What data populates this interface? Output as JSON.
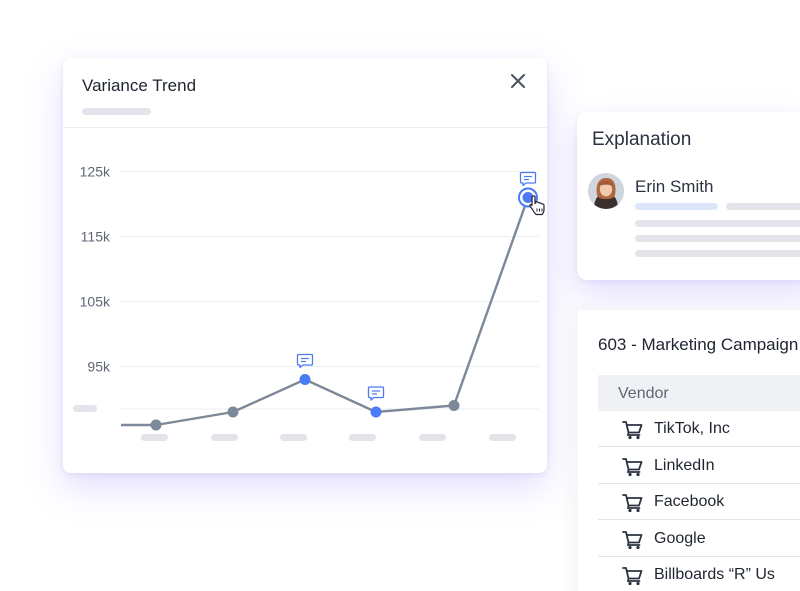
{
  "chart_card": {
    "title": "Variance Trend"
  },
  "chart_data": {
    "type": "line",
    "title": "Variance Trend",
    "y_ticks": [
      "125k",
      "115k",
      "105k",
      "95k"
    ],
    "ylim": [
      84000,
      128000
    ],
    "grid": true,
    "series": [
      {
        "values": [
          86000,
          88000,
          93000,
          88000,
          89000,
          121000
        ]
      }
    ],
    "point_colors": [
      "#7d8898",
      "#7d8898",
      "#4a7cf6",
      "#4a7cf6",
      "#7d8898",
      "#4a7cf6"
    ],
    "comment_markers": [
      2,
      3,
      5
    ],
    "line_color": "#7d8898",
    "accent_color": "#4a7cf6"
  },
  "explanation": {
    "title": "Explanation",
    "author_name": "Erin Smith"
  },
  "table": {
    "title": "603 - Marketing Campaign",
    "column_header": "Vendor",
    "rows": [
      {
        "vendor": "TikTok, Inc"
      },
      {
        "vendor": "LinkedIn"
      },
      {
        "vendor": "Facebook"
      },
      {
        "vendor": "Google"
      },
      {
        "vendor": "Billboards “R” Us"
      }
    ]
  },
  "icons": {
    "close": "close-icon",
    "comment": "comment-icon",
    "cart": "cart-icon",
    "cursor": "hand-cursor-icon"
  }
}
